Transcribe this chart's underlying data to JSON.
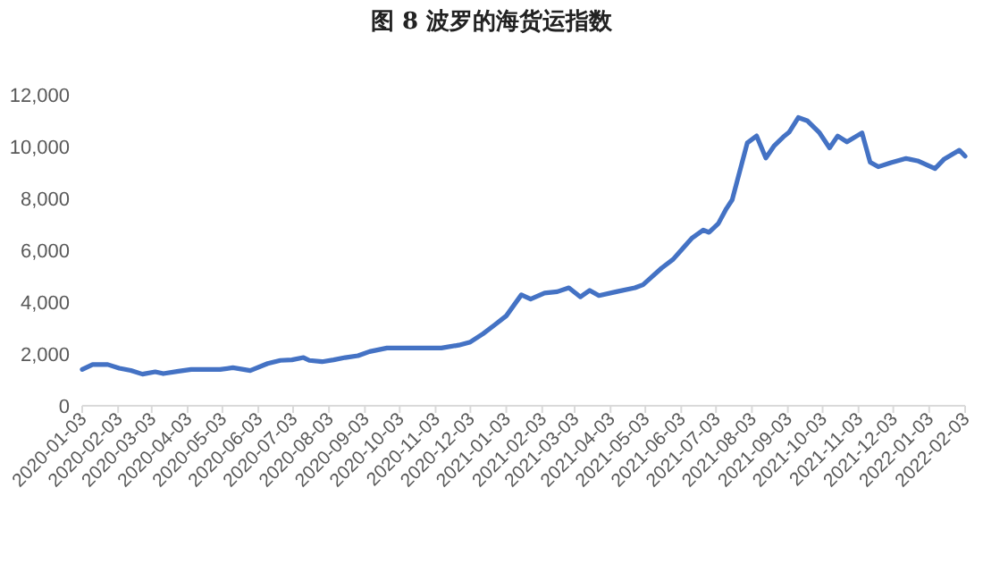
{
  "chart_data": {
    "type": "line",
    "title": "图 8 波罗的海货运指数",
    "x": [
      "2020-01-03",
      "2020-01-12",
      "2020-01-25",
      "2020-02-04",
      "2020-02-14",
      "2020-02-24",
      "2020-03-06",
      "2020-03-13",
      "2020-03-26",
      "2020-04-06",
      "2020-05-01",
      "2020-05-12",
      "2020-05-27",
      "2020-06-11",
      "2020-06-22",
      "2020-07-02",
      "2020-07-12",
      "2020-07-17",
      "2020-07-28",
      "2020-08-07",
      "2020-08-17",
      "2020-08-28",
      "2020-09-07",
      "2020-09-22",
      "2020-10-18",
      "2020-11-08",
      "2020-11-23",
      "2020-12-03",
      "2020-12-14",
      "2020-12-24",
      "2021-01-03",
      "2021-01-16",
      "2021-01-24",
      "2021-02-05",
      "2021-02-16",
      "2021-02-26",
      "2021-03-08",
      "2021-03-16",
      "2021-03-24",
      "2021-04-08",
      "2021-04-24",
      "2021-05-01",
      "2021-05-17",
      "2021-05-27",
      "2021-06-12",
      "2021-06-22",
      "2021-06-27",
      "2021-07-05",
      "2021-07-12",
      "2021-07-17",
      "2021-07-30",
      "2021-08-07",
      "2021-08-15",
      "2021-08-22",
      "2021-08-30",
      "2021-09-04",
      "2021-09-12",
      "2021-09-20",
      "2021-09-30",
      "2021-10-09",
      "2021-10-16",
      "2021-10-24",
      "2021-11-06",
      "2021-11-13",
      "2021-11-20",
      "2021-12-01",
      "2021-12-14",
      "2021-12-24",
      "2022-01-08",
      "2022-01-16",
      "2022-01-29",
      "2022-02-03"
    ],
    "series": [
      {
        "color": "#4472c4",
        "values": [
          1400,
          1590,
          1590,
          1450,
          1360,
          1220,
          1310,
          1240,
          1330,
          1400,
          1400,
          1470,
          1360,
          1630,
          1750,
          1770,
          1860,
          1750,
          1700,
          1770,
          1860,
          1930,
          2090,
          2230,
          2230,
          2230,
          2340,
          2460,
          2780,
          3120,
          3470,
          4280,
          4120,
          4350,
          4400,
          4550,
          4200,
          4450,
          4250,
          4400,
          4550,
          4670,
          5310,
          5650,
          6460,
          6780,
          6690,
          7030,
          7610,
          7950,
          10140,
          10410,
          9560,
          10020,
          10370,
          10550,
          11120,
          10990,
          10550,
          9950,
          10410,
          10180,
          10530,
          9400,
          9220,
          9380,
          9540,
          9450,
          9150,
          9520,
          9860,
          9630
        ]
      }
    ],
    "xlim": [
      "2020-01-03",
      "2022-02-03"
    ],
    "xticks": [
      "2020-01-03",
      "2020-02-03",
      "2020-03-03",
      "2020-04-03",
      "2020-05-03",
      "2020-06-03",
      "2020-07-03",
      "2020-08-03",
      "2020-09-03",
      "2020-10-03",
      "2020-11-03",
      "2020-12-03",
      "2021-01-03",
      "2021-02-03",
      "2021-03-03",
      "2021-04-03",
      "2021-05-03",
      "2021-06-03",
      "2021-07-03",
      "2021-08-03",
      "2021-09-03",
      "2021-10-03",
      "2021-11-03",
      "2021-12-03",
      "2022-01-03",
      "2022-02-03"
    ],
    "ylim": [
      0,
      12000
    ],
    "yticks": [
      0,
      {
        "value": 2000,
        "label": "2,000"
      },
      {
        "value": 4000,
        "label": "4,000"
      },
      {
        "value": 6000,
        "label": "6,000"
      },
      {
        "value": 8000,
        "label": "8,000"
      },
      {
        "value": 10000,
        "label": "10,000"
      },
      {
        "value": 12000,
        "label": "12,000"
      }
    ],
    "grid": false,
    "marker": "none",
    "line_style": "solid"
  }
}
